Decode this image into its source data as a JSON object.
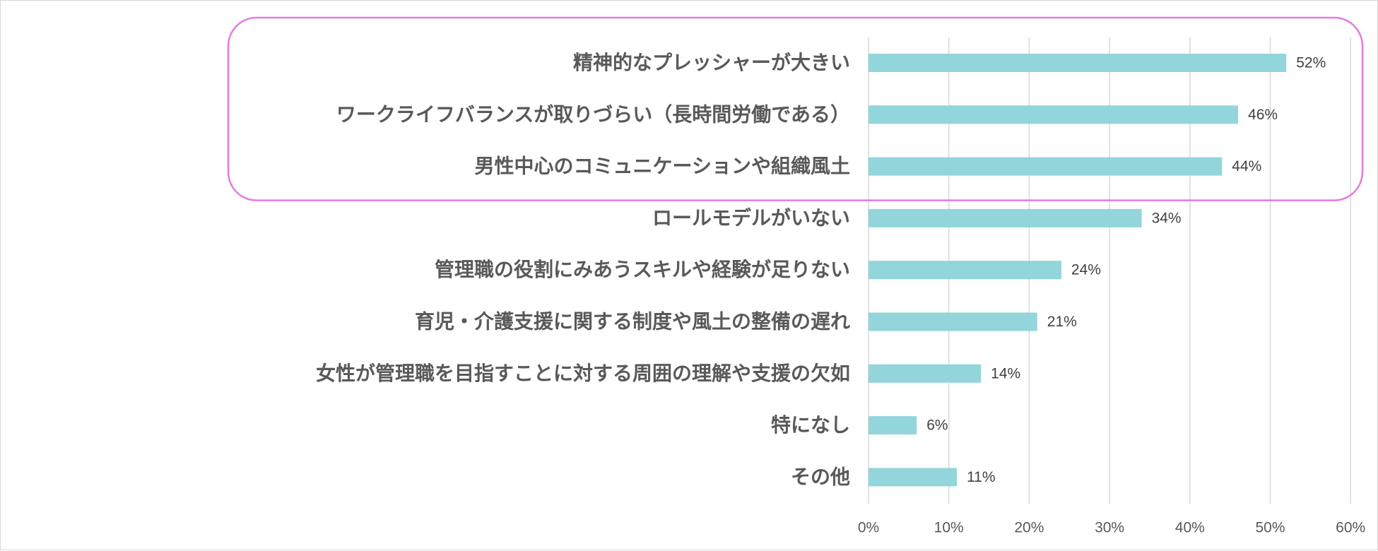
{
  "chart_data": {
    "type": "bar",
    "orientation": "horizontal",
    "categories": [
      "精神的なプレッシャーが大きい",
      "ワークライフバランスが取りづらい（長時間労働である）",
      "男性中心のコミュニケーションや組織風土",
      "ロールモデルがいない",
      "管理職の役割にみあうスキルや経験が足りない",
      "育児・介護支援に関する制度や風土の整備の遅れ",
      "女性が管理職を目指すことに対する周囲の理解や支援の欠如",
      "特になし",
      "その他"
    ],
    "values": [
      52,
      46,
      44,
      34,
      24,
      21,
      14,
      6,
      11
    ],
    "value_labels": [
      "52%",
      "46%",
      "44%",
      "34%",
      "24%",
      "21%",
      "14%",
      "6%",
      "11%"
    ],
    "x_ticks": [
      "0%",
      "10%",
      "20%",
      "30%",
      "40%",
      "50%",
      "60%"
    ],
    "xlim": [
      0,
      60
    ],
    "title": "",
    "xlabel": "",
    "ylabel": "",
    "grid": "vertical gridlines",
    "legend": "none",
    "highlight": {
      "categories_highlighted": 3,
      "style": "rounded outline around top three categories"
    },
    "colors": {
      "bar": "#92D5DB",
      "highlight_border": "#E47BE0",
      "grid": "#D9D9D9",
      "label_text": "#595959"
    }
  }
}
